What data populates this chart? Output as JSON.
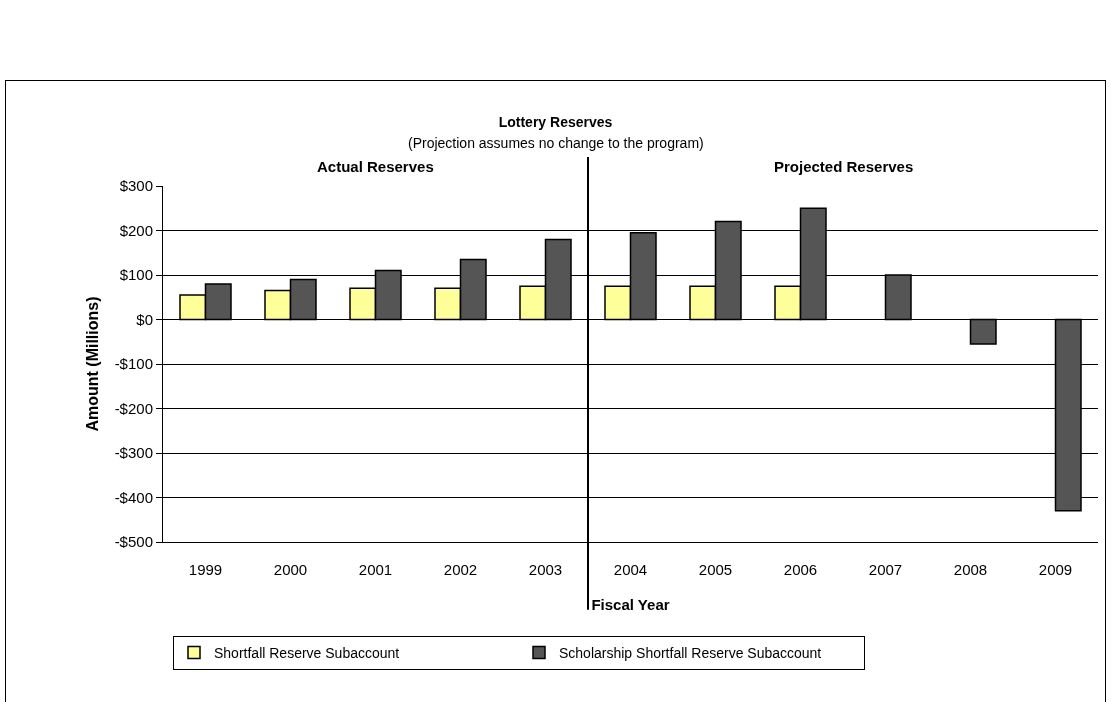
{
  "chart_data": {
    "type": "bar",
    "title": "Lottery Reserves",
    "subtitle": "(Projection assumes no change to the program)",
    "xlabel": "Fiscal Year",
    "ylabel": "Amount (Millions)",
    "x": [
      1999,
      2000,
      2001,
      2002,
      2003,
      2004,
      2005,
      2006,
      2007,
      2008,
      2009
    ],
    "xlim": [
      1998.5,
      2009.5
    ],
    "xticks": [
      1999,
      2000,
      2001,
      2002,
      2003,
      2004,
      2005,
      2006,
      2007,
      2008,
      2009
    ],
    "series": [
      {
        "name": "Shortfall Reserve Subaccount",
        "color": "#ffff99",
        "values": [
          55,
          65,
          70,
          70,
          75,
          75,
          75,
          75,
          null,
          null,
          null
        ]
      },
      {
        "name": "Scholarship Shortfall Reserve Subaccount",
        "color": "#555555",
        "values": [
          80,
          90,
          110,
          135,
          180,
          195,
          220,
          250,
          100,
          -55,
          -430
        ]
      }
    ],
    "ylim": [
      -500,
      300
    ],
    "yticks": [
      {
        "value": -500,
        "label": "-$500"
      },
      {
        "value": -400,
        "label": "-$400"
      },
      {
        "value": -300,
        "label": "-$300"
      },
      {
        "value": -200,
        "label": "-$200"
      },
      {
        "value": -100,
        "label": "-$100"
      },
      {
        "value": 0,
        "label": "$0"
      },
      {
        "value": 100,
        "label": "$100"
      },
      {
        "value": 200,
        "label": "$200"
      },
      {
        "value": 300,
        "label": "$300"
      }
    ],
    "grid": "y",
    "legend": "bottom",
    "ref_lines": [
      {
        "axis": "x",
        "value": 2003.5,
        "color": "#000000"
      }
    ],
    "annotations": [
      "Actual Reserves",
      "Projected Reserves"
    ]
  }
}
